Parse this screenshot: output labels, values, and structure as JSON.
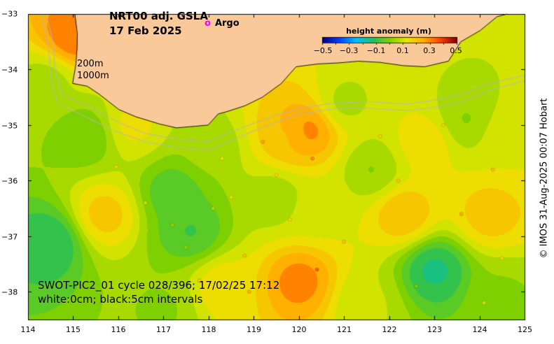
{
  "title": {
    "line1": "NRT00 adj. GSLA",
    "line2": "17 Feb 2025"
  },
  "legend": {
    "marker_symbol": "o",
    "marker_label": "Argo",
    "marker_color": "#ff00ff"
  },
  "contour_labels": {
    "shallow": "200m",
    "deep": "1000m"
  },
  "track_annotation": {
    "line1": "SWOT-PIC2_01 cycle 028/396; 17/02/25 17:12",
    "line2": "white:0cm; black:5cm intervals"
  },
  "colorbar": {
    "title": "height anomaly (m)",
    "ticks": [
      "−0.5",
      "−0.3",
      "−0.1",
      "0.1",
      "0.3",
      "0.5"
    ],
    "range": [
      -0.5,
      0.5
    ],
    "colors": [
      "#00007f",
      "#0040ff",
      "#00bfff",
      "#20c060",
      "#7fd000",
      "#e8e800",
      "#ffb000",
      "#ff4000",
      "#7f0000"
    ]
  },
  "credit": "© IMOS 31-Aug-2025 00:07 Hobart",
  "axes": {
    "x_ticks": [
      "114",
      "115",
      "116",
      "117",
      "118",
      "119",
      "120",
      "121",
      "122",
      "123",
      "124",
      "125"
    ],
    "y_ticks": [
      "−33",
      "−34",
      "−35",
      "−36",
      "−37",
      "−38"
    ],
    "lon_range": [
      114,
      125
    ],
    "lat_range": [
      -38.5,
      -33
    ]
  },
  "colors": {
    "land": "#f9c99a",
    "bathymetry_contour": "#b8b8b8",
    "ocean_base": "#66dd11"
  },
  "fields": [
    {
      "lon": 115.0,
      "lat": -33.4,
      "anomaly": 0.32
    },
    {
      "lon": 116.8,
      "lat": -33.5,
      "anomaly": 0.02
    },
    {
      "lon": 115.3,
      "lat": -35.2,
      "anomaly": -0.02
    },
    {
      "lon": 114.5,
      "lat": -37.1,
      "anomaly": -0.12
    },
    {
      "lon": 114.4,
      "lat": -34.2,
      "anomaly": 0.05
    },
    {
      "lon": 115.7,
      "lat": -36.6,
      "anomaly": 0.2
    },
    {
      "lon": 116.3,
      "lat": -35.0,
      "anomaly": 0.14
    },
    {
      "lon": 117.2,
      "lat": -36.2,
      "anomaly": -0.06
    },
    {
      "lon": 117.6,
      "lat": -36.9,
      "anomaly": -0.08
    },
    {
      "lon": 118.0,
      "lat": -35.4,
      "anomaly": 0.04
    },
    {
      "lon": 118.3,
      "lat": -37.9,
      "anomaly": 0.16
    },
    {
      "lon": 119.8,
      "lat": -35.2,
      "anomaly": 0.22
    },
    {
      "lon": 120.2,
      "lat": -35.1,
      "anomaly": 0.3
    },
    {
      "lon": 119.5,
      "lat": -36.3,
      "anomaly": 0.04
    },
    {
      "lon": 120.0,
      "lat": -37.8,
      "anomaly": 0.3
    },
    {
      "lon": 120.4,
      "lat": -36.5,
      "anomaly": 0.1
    },
    {
      "lon": 121.6,
      "lat": -35.8,
      "anomaly": 0.02
    },
    {
      "lon": 122.3,
      "lat": -36.6,
      "anomaly": 0.22
    },
    {
      "lon": 122.8,
      "lat": -35.3,
      "anomaly": 0.16
    },
    {
      "lon": 123.0,
      "lat": -37.6,
      "anomaly": -0.14
    },
    {
      "lon": 124.2,
      "lat": -36.6,
      "anomaly": 0.2
    },
    {
      "lon": 124.6,
      "lat": -35.2,
      "anomaly": 0.12
    },
    {
      "lon": 121.5,
      "lat": -38.2,
      "anomaly": 0.08
    },
    {
      "lon": 124.5,
      "lat": -38.1,
      "anomaly": 0.02
    },
    {
      "lon": 117.0,
      "lat": -38.3,
      "anomaly": 0.02
    },
    {
      "lon": 123.7,
      "lat": -34.9,
      "anomaly": 0.02
    },
    {
      "lon": 121.0,
      "lat": -34.6,
      "anomaly": 0.06
    }
  ],
  "coastline": [
    [
      115.05,
      -33.0
    ],
    [
      115.08,
      -33.35
    ],
    [
      115.1,
      -33.6
    ],
    [
      115.05,
      -33.9
    ],
    [
      115.0,
      -34.25
    ],
    [
      115.3,
      -34.3
    ],
    [
      115.6,
      -34.45
    ],
    [
      116.0,
      -34.72
    ],
    [
      116.4,
      -34.85
    ],
    [
      116.9,
      -34.98
    ],
    [
      117.3,
      -35.05
    ],
    [
      117.7,
      -35.02
    ],
    [
      118.0,
      -35.0
    ],
    [
      118.2,
      -34.8
    ],
    [
      118.45,
      -34.75
    ],
    [
      118.8,
      -34.65
    ],
    [
      119.2,
      -34.5
    ],
    [
      119.6,
      -34.25
    ],
    [
      119.95,
      -33.95
    ],
    [
      120.4,
      -33.9
    ],
    [
      120.9,
      -33.88
    ],
    [
      121.3,
      -33.85
    ],
    [
      121.8,
      -33.87
    ],
    [
      122.3,
      -33.93
    ],
    [
      122.8,
      -33.95
    ],
    [
      123.3,
      -33.85
    ],
    [
      123.6,
      -33.5
    ],
    [
      124.0,
      -33.3
    ],
    [
      124.4,
      -33.05
    ],
    [
      124.6,
      -33.0
    ]
  ],
  "isobath_200m": [
    [
      114.4,
      -33.0
    ],
    [
      114.55,
      -33.5
    ],
    [
      114.6,
      -34.0
    ],
    [
      114.75,
      -34.45
    ],
    [
      115.3,
      -34.65
    ],
    [
      116.0,
      -34.95
    ],
    [
      116.6,
      -35.15
    ],
    [
      117.3,
      -35.25
    ],
    [
      118.0,
      -35.3
    ],
    [
      118.4,
      -35.15
    ],
    [
      118.9,
      -35.0
    ],
    [
      119.4,
      -34.85
    ],
    [
      120.0,
      -34.7
    ],
    [
      120.8,
      -34.6
    ],
    [
      121.6,
      -34.58
    ],
    [
      122.4,
      -34.62
    ],
    [
      123.0,
      -34.55
    ],
    [
      123.6,
      -34.45
    ],
    [
      124.2,
      -34.25
    ],
    [
      125.0,
      -34.1
    ]
  ],
  "isobath_1000m": [
    [
      114.3,
      -33.0
    ],
    [
      114.45,
      -33.55
    ],
    [
      114.5,
      -34.1
    ],
    [
      114.65,
      -34.6
    ],
    [
      115.2,
      -34.82
    ],
    [
      115.9,
      -35.1
    ],
    [
      116.6,
      -35.3
    ],
    [
      117.3,
      -35.4
    ],
    [
      118.0,
      -35.45
    ],
    [
      118.5,
      -35.28
    ],
    [
      119.0,
      -35.1
    ],
    [
      119.5,
      -34.95
    ],
    [
      120.0,
      -34.8
    ],
    [
      120.8,
      -34.7
    ],
    [
      121.6,
      -34.7
    ],
    [
      122.4,
      -34.74
    ],
    [
      123.0,
      -34.68
    ],
    [
      123.6,
      -34.58
    ],
    [
      124.2,
      -34.38
    ],
    [
      125.0,
      -34.2
    ]
  ],
  "argo_floats": [
    [
      115.95,
      -35.75
    ],
    [
      116.6,
      -36.4
    ],
    [
      117.2,
      -36.8
    ],
    [
      117.5,
      -37.2
    ],
    [
      118.1,
      -36.5
    ],
    [
      118.5,
      -36.3
    ],
    [
      118.8,
      -37.35
    ],
    [
      119.2,
      -35.3
    ],
    [
      119.8,
      -36.7
    ],
    [
      120.3,
      -35.6
    ],
    [
      120.4,
      -37.6
    ],
    [
      121.8,
      -35.2
    ],
    [
      122.2,
      -36.0
    ],
    [
      123.6,
      -36.6
    ],
    [
      124.3,
      -35.8
    ],
    [
      124.5,
      -37.4
    ],
    [
      118.3,
      -35.6
    ],
    [
      119.5,
      -35.9
    ],
    [
      121.0,
      -37.1
    ],
    [
      124.1,
      -38.2
    ],
    [
      122.6,
      -37.9
    ],
    [
      123.2,
      -35.0
    ],
    [
      117.8,
      -37.8
    ],
    [
      118.9,
      -38.0
    ]
  ]
}
